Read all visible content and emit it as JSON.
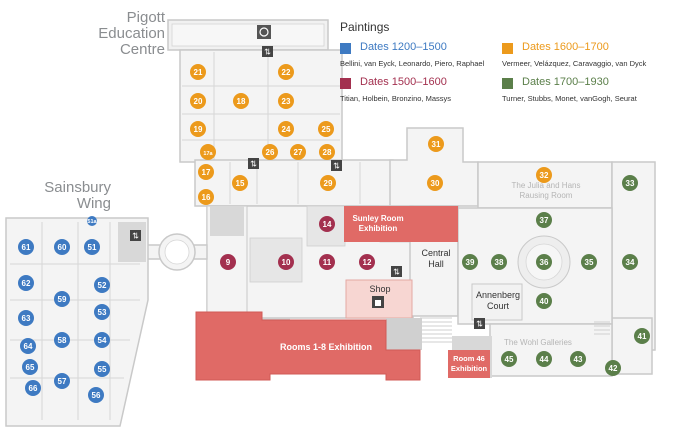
{
  "area_labels": {
    "pigott": [
      "Pigott",
      "Education",
      "Centre"
    ],
    "sainsbury": [
      "Sainsbury",
      "Wing"
    ]
  },
  "legend": {
    "heading": "Paintings",
    "items": [
      {
        "key": "p1",
        "dates": "Dates 1200–1500",
        "artists": "Bellini, van Eyck, Leonardo, Piero, Raphael",
        "color": "#3e7ac2"
      },
      {
        "key": "p2",
        "dates": "Dates 1500–1600",
        "artists": "Titian, Holbein, Bronzino, Massys",
        "color": "#a3304f"
      },
      {
        "key": "p3",
        "dates": "Dates 1600–1700",
        "artists": "Vermeer, Velázquez, Caravaggio, van Dyck",
        "color": "#ec9a1c"
      },
      {
        "key": "p4",
        "dates": "Dates 1700–1930",
        "artists": "Turner, Stubbs, Monet, vanGogh, Seurat",
        "color": "#5b7f4a"
      }
    ]
  },
  "rooms": [
    {
      "n": "21",
      "p": "p3"
    },
    {
      "n": "22",
      "p": "p3"
    },
    {
      "n": "20",
      "p": "p3"
    },
    {
      "n": "18",
      "p": "p3"
    },
    {
      "n": "23",
      "p": "p3"
    },
    {
      "n": "19",
      "p": "p3"
    },
    {
      "n": "24",
      "p": "p3"
    },
    {
      "n": "25",
      "p": "p3"
    },
    {
      "n": "17a",
      "p": "p3"
    },
    {
      "n": "26",
      "p": "p3"
    },
    {
      "n": "27",
      "p": "p3"
    },
    {
      "n": "28",
      "p": "p3"
    },
    {
      "n": "17",
      "p": "p3"
    },
    {
      "n": "15",
      "p": "p3"
    },
    {
      "n": "29",
      "p": "p3"
    },
    {
      "n": "16",
      "p": "p3"
    },
    {
      "n": "31",
      "p": "p3"
    },
    {
      "n": "30",
      "p": "p3"
    },
    {
      "n": "32",
      "p": "p3"
    },
    {
      "n": "33",
      "p": "p4"
    },
    {
      "n": "37",
      "p": "p4"
    },
    {
      "n": "39",
      "p": "p4"
    },
    {
      "n": "38",
      "p": "p4"
    },
    {
      "n": "36",
      "p": "p4"
    },
    {
      "n": "35",
      "p": "p4"
    },
    {
      "n": "34",
      "p": "p4"
    },
    {
      "n": "40",
      "p": "p4"
    },
    {
      "n": "41",
      "p": "p4"
    },
    {
      "n": "45",
      "p": "p4"
    },
    {
      "n": "44",
      "p": "p4"
    },
    {
      "n": "43",
      "p": "p4"
    },
    {
      "n": "42",
      "p": "p4"
    },
    {
      "n": "14",
      "p": "p2"
    },
    {
      "n": "9",
      "p": "p2"
    },
    {
      "n": "10",
      "p": "p2"
    },
    {
      "n": "11",
      "p": "p2"
    },
    {
      "n": "12",
      "p": "p2"
    },
    {
      "n": "51a",
      "p": "p1"
    },
    {
      "n": "61",
      "p": "p1"
    },
    {
      "n": "60",
      "p": "p1"
    },
    {
      "n": "51",
      "p": "p1"
    },
    {
      "n": "62",
      "p": "p1"
    },
    {
      "n": "52",
      "p": "p1"
    },
    {
      "n": "59",
      "p": "p1"
    },
    {
      "n": "63",
      "p": "p1"
    },
    {
      "n": "53",
      "p": "p1"
    },
    {
      "n": "58",
      "p": "p1"
    },
    {
      "n": "54",
      "p": "p1"
    },
    {
      "n": "64",
      "p": "p1"
    },
    {
      "n": "65",
      "p": "p1"
    },
    {
      "n": "57",
      "p": "p1"
    },
    {
      "n": "55",
      "p": "p1"
    },
    {
      "n": "66",
      "p": "p1"
    },
    {
      "n": "56",
      "p": "p1"
    }
  ],
  "labels": {
    "sunley": "Sunley Room Exhibition",
    "central_hall": "Central Hall",
    "shop": "Shop",
    "annenberg": "Annenberg Court",
    "rooms_1_8": "Rooms 1-8 Exhibition",
    "room46": "Room 46 Exhibition",
    "julia_hans": "The Julia and Hans Rausing Room",
    "wohl": "The Wohl Galleries"
  },
  "icons": [
    "accessible-toilet-icon",
    "lift-icon",
    "shop-bag-icon"
  ]
}
